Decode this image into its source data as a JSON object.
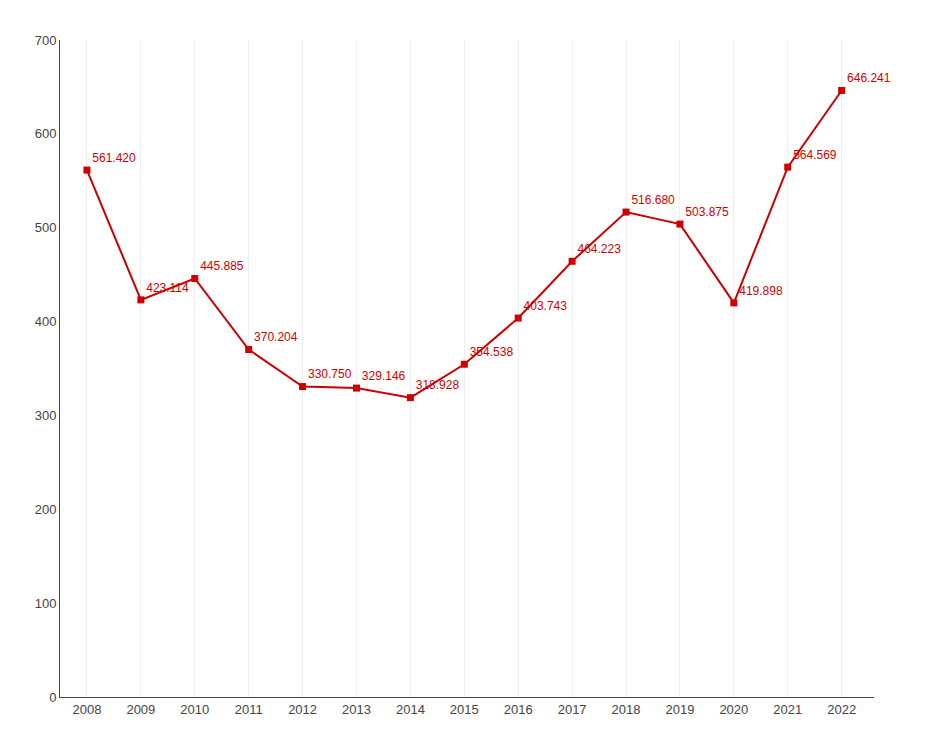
{
  "chart_data": {
    "type": "line",
    "x": [
      2008,
      2009,
      2010,
      2011,
      2012,
      2013,
      2014,
      2015,
      2016,
      2017,
      2018,
      2019,
      2020,
      2021,
      2022
    ],
    "values": [
      561.42,
      423.114,
      445.885,
      370.204,
      330.75,
      329.146,
      318.928,
      354.538,
      403.743,
      464.223,
      516.68,
      503.875,
      419.898,
      564.569,
      646.241
    ],
    "value_labels": [
      "561.420",
      "423.114",
      "445.885",
      "370.204",
      "330.750",
      "329.146",
      "318.928",
      "354.538",
      "403.743",
      "464.223",
      "516.680",
      "503.875",
      "419.898",
      "564.569",
      "646.241"
    ],
    "color": "#cc0000",
    "marker": "square",
    "data_labels": true,
    "grid": "x",
    "xlim": [
      2007.5,
      2022.6
    ],
    "xticks": [
      2008,
      2009,
      2010,
      2011,
      2012,
      2013,
      2014,
      2015,
      2016,
      2017,
      2018,
      2019,
      2020,
      2021,
      2022
    ],
    "ylim": [
      0,
      700
    ],
    "yticks": [
      0,
      100,
      200,
      300,
      400,
      500,
      600,
      700
    ]
  }
}
